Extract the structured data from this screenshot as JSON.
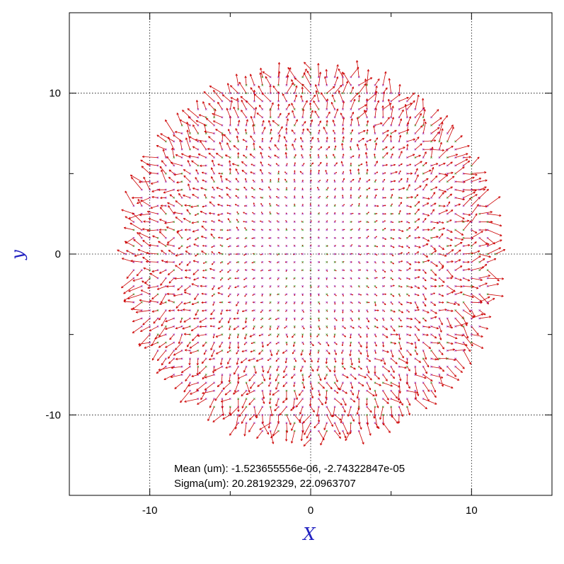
{
  "chart_data": {
    "type": "vector-field",
    "title": "",
    "xlabel": "X",
    "ylabel": "y",
    "xlim": [
      -15,
      15
    ],
    "ylim": [
      -15,
      15
    ],
    "xticks": [
      -10,
      0,
      10
    ],
    "yticks": [
      -10,
      0,
      10
    ],
    "grid": true,
    "grid_style": "dotted",
    "field": {
      "radius": 11.5,
      "spacing": 0.5,
      "arrow_color": "#cc0000",
      "marker_colors": [
        "#9933cc",
        "#33aa33"
      ]
    },
    "annotations": [
      "Mean (um): -1.523655556e-06, -2.74322847e-05",
      "Sigma(um): 20.28192329, 22.0963707"
    ]
  },
  "colors": {
    "axis_title": "#2020c0",
    "frame": "#000000",
    "grid": "#000000"
  }
}
